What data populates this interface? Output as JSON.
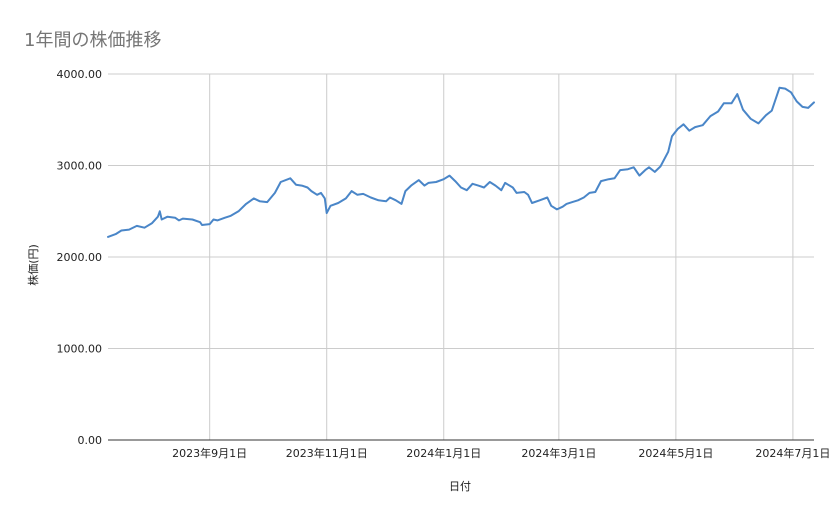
{
  "chart_data": {
    "type": "line",
    "title": "1年間の株価推移",
    "xlabel": "日付",
    "ylabel": "株価(円)",
    "ylim": [
      0,
      4000
    ],
    "grid": true,
    "legend": "none",
    "xlim": [
      "2023-07-10",
      "2024-07-12"
    ],
    "y_ticks": [
      "0.00",
      "1000.00",
      "2000.00",
      "3000.00",
      "4000.00"
    ],
    "x_ticks": [
      {
        "date": "2023-09-01",
        "label": "2023年9月1日"
      },
      {
        "date": "2023-11-01",
        "label": "2023年11月1日"
      },
      {
        "date": "2024-01-01",
        "label": "2024年1月1日"
      },
      {
        "date": "2024-03-01",
        "label": "2024年3月1日"
      },
      {
        "date": "2024-05-01",
        "label": "2024年5月1日"
      },
      {
        "date": "2024-07-01",
        "label": "2024年7月1日"
      }
    ],
    "series": [
      {
        "color": "#4a86c8",
        "points": [
          [
            "2023-07-10",
            2220
          ],
          [
            "2023-07-14",
            2250
          ],
          [
            "2023-07-17",
            2290
          ],
          [
            "2023-07-21",
            2300
          ],
          [
            "2023-07-25",
            2340
          ],
          [
            "2023-07-29",
            2320
          ],
          [
            "2023-08-02",
            2370
          ],
          [
            "2023-08-05",
            2440
          ],
          [
            "2023-08-06",
            2500
          ],
          [
            "2023-08-07",
            2410
          ],
          [
            "2023-08-10",
            2440
          ],
          [
            "2023-08-14",
            2430
          ],
          [
            "2023-08-16",
            2400
          ],
          [
            "2023-08-18",
            2420
          ],
          [
            "2023-08-23",
            2410
          ],
          [
            "2023-08-27",
            2380
          ],
          [
            "2023-08-28",
            2350
          ],
          [
            "2023-09-01",
            2360
          ],
          [
            "2023-09-03",
            2410
          ],
          [
            "2023-09-05",
            2400
          ],
          [
            "2023-09-09",
            2430
          ],
          [
            "2023-09-12",
            2450
          ],
          [
            "2023-09-16",
            2500
          ],
          [
            "2023-09-20",
            2580
          ],
          [
            "2023-09-24",
            2640
          ],
          [
            "2023-09-27",
            2610
          ],
          [
            "2023-10-01",
            2600
          ],
          [
            "2023-10-05",
            2700
          ],
          [
            "2023-10-08",
            2820
          ],
          [
            "2023-10-13",
            2860
          ],
          [
            "2023-10-16",
            2790
          ],
          [
            "2023-10-19",
            2780
          ],
          [
            "2023-10-22",
            2760
          ],
          [
            "2023-10-24",
            2720
          ],
          [
            "2023-10-27",
            2680
          ],
          [
            "2023-10-29",
            2700
          ],
          [
            "2023-10-31",
            2640
          ],
          [
            "2023-11-01",
            2480
          ],
          [
            "2023-11-03",
            2560
          ],
          [
            "2023-11-07",
            2590
          ],
          [
            "2023-11-11",
            2640
          ],
          [
            "2023-11-14",
            2720
          ],
          [
            "2023-11-17",
            2680
          ],
          [
            "2023-11-20",
            2690
          ],
          [
            "2023-11-24",
            2650
          ],
          [
            "2023-11-28",
            2620
          ],
          [
            "2023-12-02",
            2610
          ],
          [
            "2023-12-04",
            2650
          ],
          [
            "2023-12-07",
            2620
          ],
          [
            "2023-12-10",
            2580
          ],
          [
            "2023-12-12",
            2720
          ],
          [
            "2023-12-15",
            2780
          ],
          [
            "2023-12-19",
            2840
          ],
          [
            "2023-12-22",
            2780
          ],
          [
            "2023-12-24",
            2810
          ],
          [
            "2023-12-28",
            2820
          ],
          [
            "2024-01-01",
            2850
          ],
          [
            "2024-01-04",
            2890
          ],
          [
            "2024-01-07",
            2830
          ],
          [
            "2024-01-10",
            2760
          ],
          [
            "2024-01-13",
            2730
          ],
          [
            "2024-01-16",
            2800
          ],
          [
            "2024-01-19",
            2780
          ],
          [
            "2024-01-22",
            2760
          ],
          [
            "2024-01-25",
            2820
          ],
          [
            "2024-01-28",
            2780
          ],
          [
            "2024-01-31",
            2730
          ],
          [
            "2024-02-02",
            2810
          ],
          [
            "2024-02-06",
            2760
          ],
          [
            "2024-02-08",
            2700
          ],
          [
            "2024-02-12",
            2710
          ],
          [
            "2024-02-14",
            2680
          ],
          [
            "2024-02-16",
            2590
          ],
          [
            "2024-02-20",
            2620
          ],
          [
            "2024-02-24",
            2650
          ],
          [
            "2024-02-26",
            2560
          ],
          [
            "2024-02-29",
            2520
          ],
          [
            "2024-03-03",
            2550
          ],
          [
            "2024-03-05",
            2580
          ],
          [
            "2024-03-08",
            2600
          ],
          [
            "2024-03-11",
            2620
          ],
          [
            "2024-03-14",
            2650
          ],
          [
            "2024-03-17",
            2700
          ],
          [
            "2024-03-20",
            2710
          ],
          [
            "2024-03-23",
            2830
          ],
          [
            "2024-03-27",
            2850
          ],
          [
            "2024-03-30",
            2860
          ],
          [
            "2024-04-02",
            2950
          ],
          [
            "2024-04-06",
            2960
          ],
          [
            "2024-04-09",
            2980
          ],
          [
            "2024-04-12",
            2890
          ],
          [
            "2024-04-15",
            2950
          ],
          [
            "2024-04-17",
            2980
          ],
          [
            "2024-04-20",
            2930
          ],
          [
            "2024-04-23",
            2990
          ],
          [
            "2024-04-27",
            3150
          ],
          [
            "2024-04-29",
            3320
          ],
          [
            "2024-05-02",
            3400
          ],
          [
            "2024-05-05",
            3450
          ],
          [
            "2024-05-08",
            3380
          ],
          [
            "2024-05-11",
            3420
          ],
          [
            "2024-05-15",
            3440
          ],
          [
            "2024-05-19",
            3540
          ],
          [
            "2024-05-23",
            3590
          ],
          [
            "2024-05-26",
            3680
          ],
          [
            "2024-05-30",
            3680
          ],
          [
            "2024-06-02",
            3780
          ],
          [
            "2024-06-05",
            3610
          ],
          [
            "2024-06-09",
            3510
          ],
          [
            "2024-06-13",
            3460
          ],
          [
            "2024-06-17",
            3550
          ],
          [
            "2024-06-20",
            3600
          ],
          [
            "2024-06-24",
            3850
          ],
          [
            "2024-06-27",
            3840
          ],
          [
            "2024-06-30",
            3800
          ],
          [
            "2024-07-03",
            3700
          ],
          [
            "2024-07-06",
            3640
          ],
          [
            "2024-07-09",
            3630
          ],
          [
            "2024-07-12",
            3690
          ]
        ]
      }
    ]
  }
}
